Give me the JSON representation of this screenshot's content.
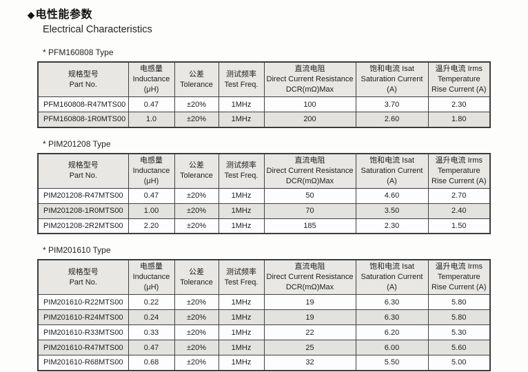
{
  "heading": {
    "bullet": "◆",
    "title_cn": "电性能参数",
    "title_en": "Electrical Characteristics"
  },
  "columns": [
    {
      "id": "part-no",
      "lines": [
        "规格型号",
        "Part No."
      ]
    },
    {
      "id": "inductance",
      "lines": [
        "电感量",
        "Inductance",
        "(μH)"
      ]
    },
    {
      "id": "tolerance",
      "lines": [
        "公差",
        "Tolerance"
      ]
    },
    {
      "id": "test-freq",
      "lines": [
        "测试频率",
        "Test Freq."
      ]
    },
    {
      "id": "dcr",
      "lines": [
        "直流电阻",
        "Direct Current Resistance",
        "DCR(mΩ)Max"
      ]
    },
    {
      "id": "isat",
      "lines": [
        "饱和电流  Isat",
        "Saturation Current",
        "(A)"
      ]
    },
    {
      "id": "irms",
      "lines": [
        "温升电流  Irms",
        "Temperature",
        "Rise Current (A)"
      ]
    }
  ],
  "sections": [
    {
      "title": "*  PFM160808 Type",
      "rows": [
        [
          "PFM160808-R47MTS00",
          "0.47",
          "±20%",
          "1MHz",
          "100",
          "3.70",
          "2.30"
        ],
        [
          "PFM160808-1R0MTS00",
          "1.0",
          "±20%",
          "1MHz",
          "200",
          "2.60",
          "1.80"
        ]
      ]
    },
    {
      "title": "*  PIM201208 Type",
      "rows": [
        [
          "PIM201208-R47MTS00",
          "0.47",
          "±20%",
          "1MHz",
          "50",
          "4.60",
          "2.70"
        ],
        [
          "PIM201208-1R0MTS00",
          "1.00",
          "±20%",
          "1MHz",
          "70",
          "3.50",
          "2.40"
        ],
        [
          "PIM201208-2R2MTS00",
          "2.20",
          "±20%",
          "1MHz",
          "185",
          "2.30",
          "1.50"
        ]
      ]
    },
    {
      "title": "*  PIM201610 Type",
      "rows": [
        [
          "PIM201610-R22MTS00",
          "0.22",
          "±20%",
          "1MHz",
          "19",
          "6.30",
          "5.80"
        ],
        [
          "PIM201610-R24MTS00",
          "0.24",
          "±20%",
          "1MHz",
          "19",
          "6.30",
          "5.80"
        ],
        [
          "PIM201610-R33MTS00",
          "0.33",
          "±20%",
          "1MHz",
          "22",
          "6.20",
          "5.30"
        ],
        [
          "PIM201610-R47MTS00",
          "0.47",
          "±20%",
          "1MHz",
          "25",
          "6.00",
          "5.60"
        ],
        [
          "PIM201610-R68MTS00",
          "0.68",
          "±20%",
          "1MHz",
          "32",
          "5.50",
          "5.00"
        ]
      ]
    }
  ],
  "colors": {
    "header_bg": "#e8e7e4",
    "alt_row_bg": "#e3e2df",
    "border": "#3a3a3a",
    "text": "#1e1e1e"
  }
}
